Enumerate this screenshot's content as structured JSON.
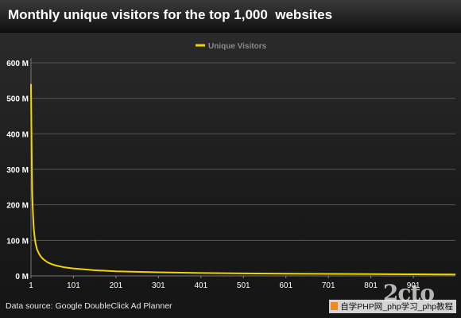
{
  "header": {
    "title": "Monthly unique visitors for the top 1,000  websites"
  },
  "footer": {
    "source": "Data source: Google DoubleClick Ad Planner"
  },
  "watermark": {
    "logo_text": "2cto",
    "caption": "自学PHP网_php学习_php教程"
  },
  "colors": {
    "line": "#f2d500",
    "text": "#ffffff",
    "legend_text": "#8a8a8a",
    "grid": "#555555"
  },
  "chart_data": {
    "type": "line",
    "title": "Monthly unique visitors for the top 1,000  websites",
    "xlabel": "",
    "ylabel": "",
    "xlim": [
      1,
      1000
    ],
    "ylim": [
      0,
      600
    ],
    "y_unit_suffix": " M",
    "yticks": [
      0,
      100,
      200,
      300,
      400,
      500,
      600
    ],
    "xticks": [
      1,
      101,
      201,
      301,
      401,
      501,
      601,
      701,
      801,
      901
    ],
    "grid": true,
    "legend": "top-center",
    "series": [
      {
        "name": "Unique Visitors",
        "x": [
          1,
          2,
          3,
          4,
          5,
          6,
          7,
          8,
          10,
          12,
          15,
          20,
          25,
          30,
          40,
          50,
          60,
          80,
          100,
          150,
          200,
          300,
          400,
          500,
          600,
          700,
          800,
          900,
          1000
        ],
        "values": [
          540,
          420,
          300,
          230,
          195,
          165,
          145,
          128,
          105,
          90,
          75,
          62,
          53,
          47,
          38,
          33,
          29,
          24,
          21,
          16,
          13,
          10,
          8,
          7,
          6,
          5.5,
          5,
          4.5,
          4
        ]
      }
    ]
  }
}
